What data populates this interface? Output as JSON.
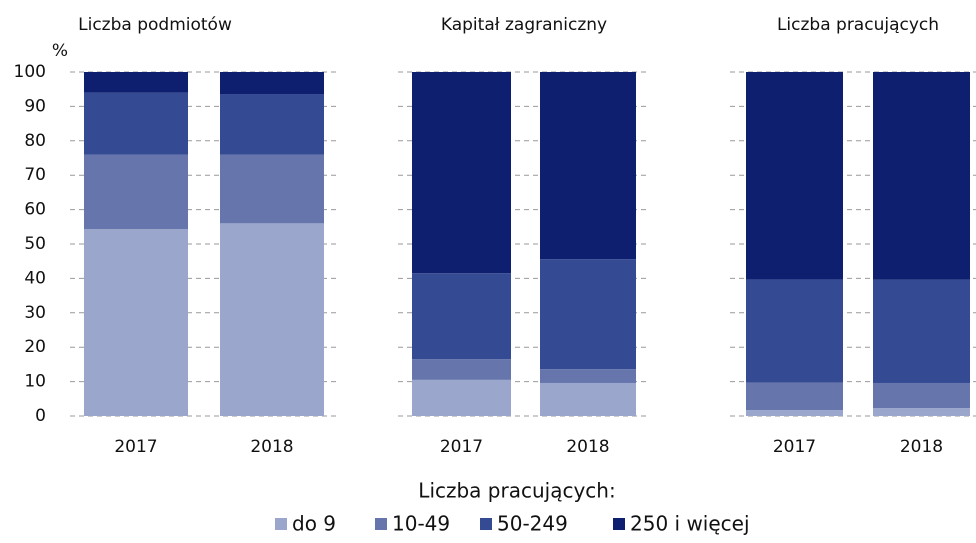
{
  "chart_data": [
    {
      "type": "bar",
      "stacked": true,
      "title": "Liczba podmiotów",
      "y_label": "%",
      "legend_title": "Liczba pracujących:",
      "categories": [
        "2017",
        "2018"
      ],
      "series": [
        {
          "name": "do 9",
          "color": "#9aa6cb",
          "values": [
            54.3,
            56
          ]
        },
        {
          "name": "10-49",
          "color": "#6676ad",
          "values": [
            21.7,
            20
          ]
        },
        {
          "name": "50-249",
          "color": "#344b94",
          "values": [
            18,
            17.6
          ]
        },
        {
          "name": "250 i więcej",
          "color": "#0d1f6e",
          "values": [
            6,
            6.4
          ]
        }
      ],
      "ylim": [
        0,
        100
      ],
      "yticks": [
        0,
        10,
        20,
        30,
        40,
        50,
        60,
        70,
        80,
        90,
        100
      ],
      "grid": true
    },
    {
      "type": "bar",
      "stacked": true,
      "title": "Kapitał zagraniczny",
      "categories": [
        "2017",
        "2018"
      ],
      "series": [
        {
          "name": "do 9",
          "color": "#9aa6cb",
          "values": [
            10.5,
            9.6
          ]
        },
        {
          "name": "10-49",
          "color": "#6676ad",
          "values": [
            6,
            4
          ]
        },
        {
          "name": "50-249",
          "color": "#344b94",
          "values": [
            25,
            32
          ]
        },
        {
          "name": "250 i więcej",
          "color": "#0d1f6e",
          "values": [
            58.5,
            54.4
          ]
        }
      ],
      "ylim": [
        0,
        100
      ],
      "yticks": [
        0,
        10,
        20,
        30,
        40,
        50,
        60,
        70,
        80,
        90,
        100
      ],
      "grid": true
    },
    {
      "type": "bar",
      "stacked": true,
      "title": "Liczba pracujących",
      "categories": [
        "2017",
        "2018"
      ],
      "series": [
        {
          "name": "do 9",
          "color": "#9aa6cb",
          "values": [
            1.7,
            2.3
          ]
        },
        {
          "name": "10-49",
          "color": "#6676ad",
          "values": [
            8,
            7.3
          ]
        },
        {
          "name": "50-249",
          "color": "#344b94",
          "values": [
            30,
            30
          ]
        },
        {
          "name": "250 i więcej",
          "color": "#0d1f6e",
          "values": [
            60.3,
            60.4
          ]
        }
      ],
      "ylim": [
        0,
        100
      ],
      "yticks": [
        0,
        10,
        20,
        30,
        40,
        50,
        60,
        70,
        80,
        90,
        100
      ],
      "grid": true
    }
  ]
}
